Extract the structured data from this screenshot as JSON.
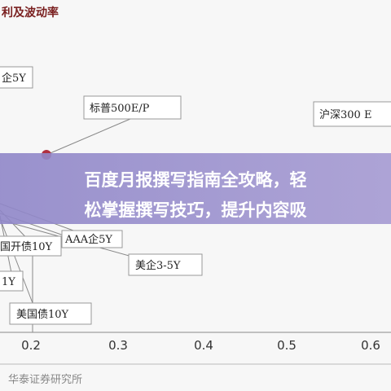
{
  "header": {
    "title": "利及波动率"
  },
  "annotations": [
    "企5Y",
    "标普500E/P",
    "沪深300 E",
    "AAA企5Y",
    "国开债10Y",
    "美企3-5Y",
    "1Y",
    "美国债10Y"
  ],
  "x_axis": {
    "tick_labels": [
      "0.2",
      "0.3",
      "0.4",
      "0.5",
      "0.6"
    ]
  },
  "banner": {
    "lines": [
      "百度月报撰写指南全攻略，轻",
      "松掌握撰写技巧，提升内容吸"
    ]
  },
  "source": "华泰证券研究所"
}
